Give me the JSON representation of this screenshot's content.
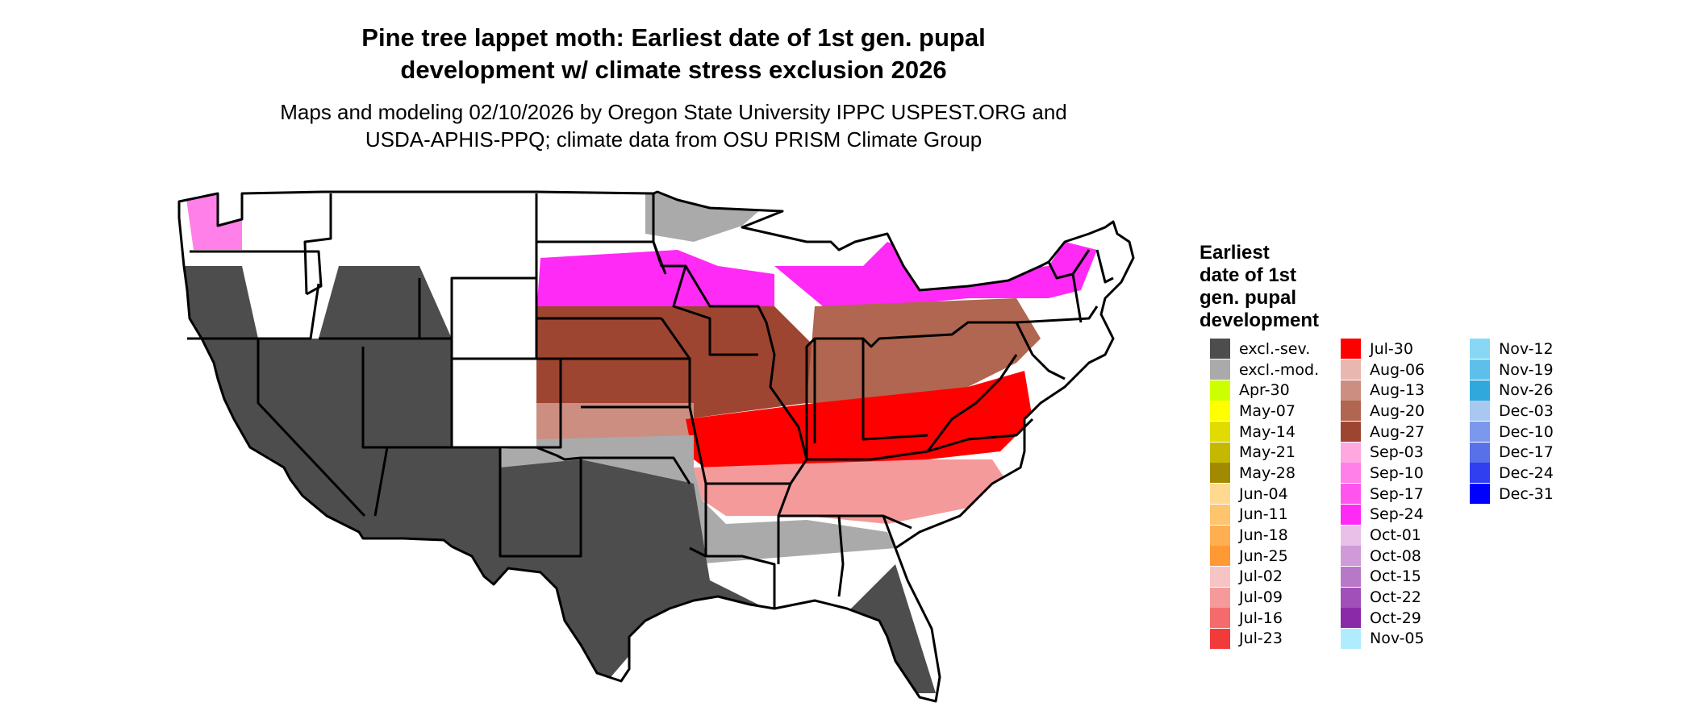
{
  "title_line1": "Pine tree lappet moth: Earliest date of 1st gen. pupal",
  "title_line2": "development w/ climate stress exclusion 2026",
  "subtitle_line1": "Maps and modeling 02/10/2026 by Oregon State University IPPC USPEST.ORG and",
  "subtitle_line2": "USDA-APHIS-PPQ; climate data from OSU PRISM Climate Group",
  "legend_title": [
    "Earliest",
    "date of 1st",
    "gen. pupal",
    "development"
  ],
  "legend_columns": [
    [
      {
        "label": "excl.-sev.",
        "color": "#4d4d4d"
      },
      {
        "label": "excl.-mod.",
        "color": "#aaaaaa"
      },
      {
        "label": "Apr-30",
        "color": "#ccff00"
      },
      {
        "label": "May-07",
        "color": "#ffff00"
      },
      {
        "label": "May-14",
        "color": "#e0db00"
      },
      {
        "label": "May-21",
        "color": "#c4b800"
      },
      {
        "label": "May-28",
        "color": "#a18a00"
      },
      {
        "label": "Jun-04",
        "color": "#ffd98f"
      },
      {
        "label": "Jun-11",
        "color": "#ffc46e"
      },
      {
        "label": "Jun-18",
        "color": "#ffae52"
      },
      {
        "label": "Jun-25",
        "color": "#ff9933"
      },
      {
        "label": "Jul-02",
        "color": "#f7c4c4"
      },
      {
        "label": "Jul-09",
        "color": "#f59a9a"
      },
      {
        "label": "Jul-16",
        "color": "#f56b6b"
      },
      {
        "label": "Jul-23",
        "color": "#f23a3a"
      }
    ],
    [
      {
        "label": "Jul-30",
        "color": "#ff0000"
      },
      {
        "label": "Aug-06",
        "color": "#e8b8b0"
      },
      {
        "label": "Aug-13",
        "color": "#cc8e80"
      },
      {
        "label": "Aug-20",
        "color": "#b06650"
      },
      {
        "label": "Aug-27",
        "color": "#9e4532"
      },
      {
        "label": "Sep-03",
        "color": "#ffa8e0"
      },
      {
        "label": "Sep-10",
        "color": "#ff80e8"
      },
      {
        "label": "Sep-17",
        "color": "#ff55ee"
      },
      {
        "label": "Sep-24",
        "color": "#ff2af5"
      },
      {
        "label": "Oct-01",
        "color": "#e8c0e8"
      },
      {
        "label": "Oct-08",
        "color": "#d09ad8"
      },
      {
        "label": "Oct-15",
        "color": "#b878c8"
      },
      {
        "label": "Oct-22",
        "color": "#a050b8"
      },
      {
        "label": "Oct-29",
        "color": "#8a2aa8"
      },
      {
        "label": "Nov-05",
        "color": "#b0ecff"
      }
    ],
    [
      {
        "label": "Nov-12",
        "color": "#88d8f5"
      },
      {
        "label": "Nov-19",
        "color": "#5ec0ea"
      },
      {
        "label": "Nov-26",
        "color": "#30a8dc"
      },
      {
        "label": "Dec-03",
        "color": "#a8c8f0"
      },
      {
        "label": "Dec-10",
        "color": "#7c98ec"
      },
      {
        "label": "Dec-17",
        "color": "#5870e8"
      },
      {
        "label": "Dec-24",
        "color": "#3040f0"
      },
      {
        "label": "Dec-31",
        "color": "#0000ff"
      }
    ]
  ]
}
